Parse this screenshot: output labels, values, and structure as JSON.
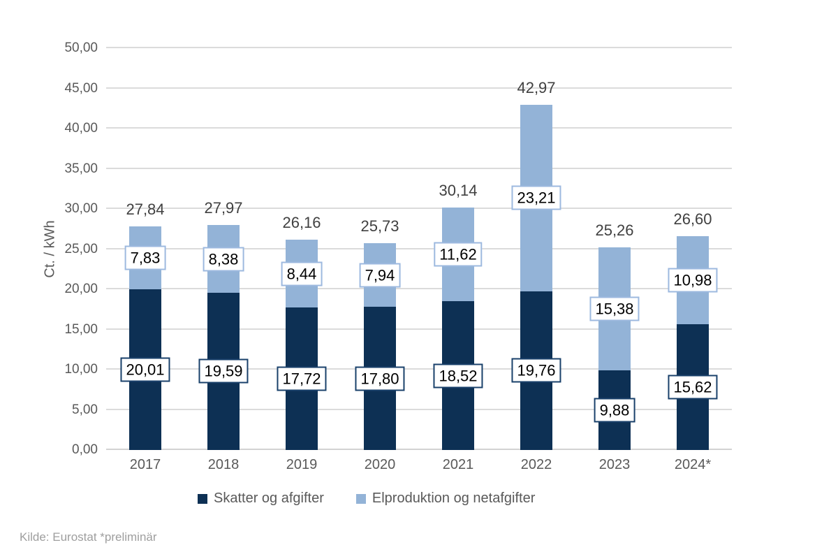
{
  "chart_data": {
    "type": "bar",
    "stacked": true,
    "ylabel": "Ct. / kWh",
    "ylim": [
      0,
      50
    ],
    "ytick_step": 5,
    "ytick_labels": [
      "0,00",
      "5,00",
      "10,00",
      "15,00",
      "20,00",
      "25,00",
      "30,00",
      "35,00",
      "40,00",
      "45,00",
      "50,00"
    ],
    "grid": true,
    "legend_position": "bottom",
    "decimal_separator": ",",
    "categories": [
      "2017",
      "2018",
      "2019",
      "2020",
      "2021",
      "2022",
      "2023",
      "2024*"
    ],
    "series": [
      {
        "name": "Skatter og afgifter",
        "color": "#0D3054",
        "label_border_color": "#1A416B",
        "values": [
          20.01,
          19.59,
          17.72,
          17.8,
          18.52,
          19.76,
          9.88,
          15.62
        ]
      },
      {
        "name": "Elproduktion og netafgifter",
        "color": "#93B3D7",
        "label_border_color": "#9DB9DF",
        "values": [
          7.83,
          8.38,
          8.44,
          7.94,
          11.62,
          23.21,
          15.38,
          10.98
        ]
      }
    ],
    "totals": [
      27.84,
      27.97,
      26.16,
      25.73,
      30.14,
      42.97,
      25.26,
      26.6
    ]
  },
  "colors": {
    "background": "#FFFFFF",
    "grid": "#DBDBDB",
    "axis_line": "#D2D2D2",
    "tick_text": "#595959",
    "total_text": "#404040",
    "value_text": "#000000",
    "legend_text": "#595959",
    "footer_text": "#9E9E9E"
  },
  "footer": {
    "source": "Kilde: Eurostat *preliminär"
  }
}
